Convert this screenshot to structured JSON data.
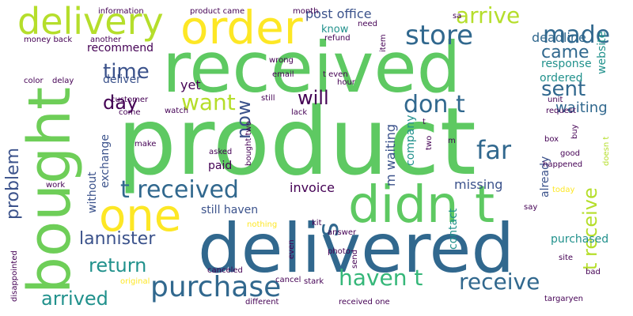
{
  "colors": {
    "background": "#ffffff",
    "dark_purple": "#440154",
    "indigo": "#3b528b",
    "blue": "#31688e",
    "teal": "#21918c",
    "sea_green": "#35b779",
    "green": "#5ec962",
    "light_green": "#6ece58",
    "lime": "#b5de2b",
    "yellow": "#fde725"
  },
  "words": [
    "product",
    "received",
    "delivered",
    "didn t",
    "bought",
    "order",
    "delivery",
    "one",
    "store",
    "purchase",
    "t received",
    "haven t",
    "receive",
    "want",
    "made",
    "arrive",
    "came",
    "sent",
    "don t",
    "far",
    "will",
    "day",
    "time",
    "arrived",
    "return",
    "lannister",
    "problem",
    "now",
    "t receive",
    "s",
    "post office",
    "recommend",
    "deliver",
    "yet",
    "waiting",
    "deadline",
    "response",
    "website",
    "ordered",
    "exchange",
    "without",
    "paid",
    "invoice",
    "missing",
    "still haven",
    "m waiting",
    "company",
    "already",
    "contact",
    "purchased",
    "know",
    "information",
    "product came",
    "month",
    "sa",
    "need",
    "refund",
    "item",
    "another",
    "money back",
    "color",
    "delay",
    "customer",
    "wrong",
    "email",
    "t even",
    "request",
    "unit",
    "come",
    "watch",
    "lack",
    "make",
    "asked",
    "bought two",
    "two",
    "buy",
    "box",
    "good",
    "happened",
    "doesn t",
    "work",
    "today",
    "say",
    "canceled",
    "kit",
    "answer",
    "nothing",
    "photo",
    "even",
    "send",
    "site",
    "bad",
    "disappointed",
    "original",
    "cancel",
    "stark",
    "different",
    "received one",
    "targaryen",
    "still",
    "m",
    "t",
    "hour"
  ]
}
